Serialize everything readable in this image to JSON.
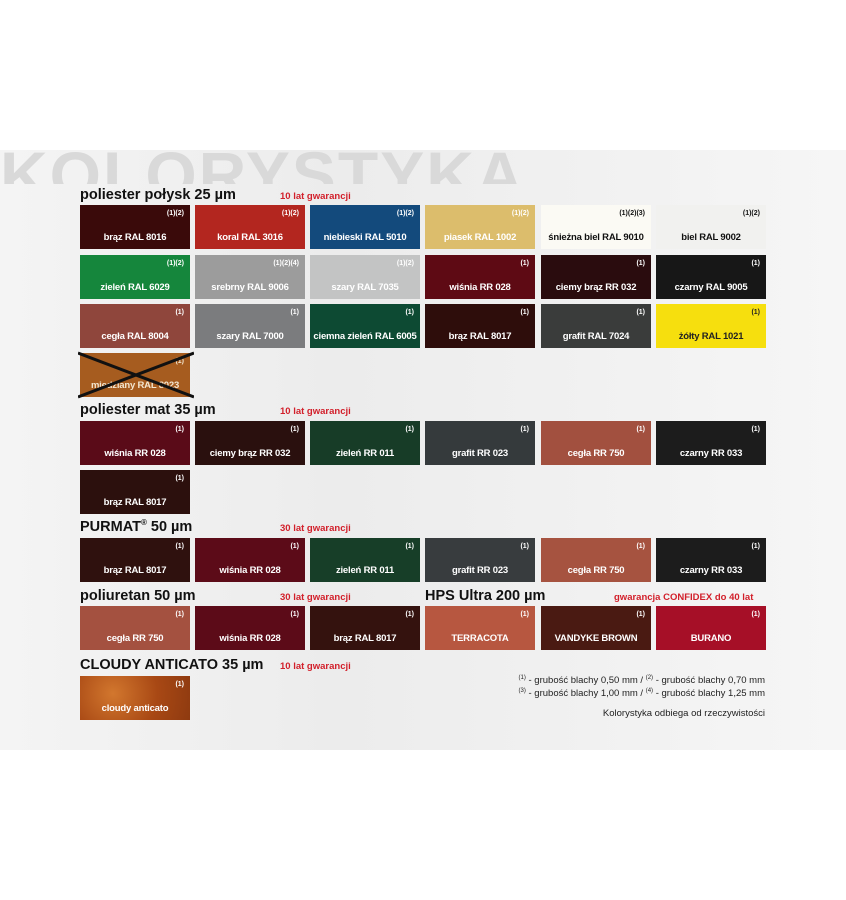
{
  "watermark": "KOLORYSTYKA",
  "sections": [
    {
      "id": "poliester-polysk",
      "title": "poliester połysk 25 µm",
      "warranty": "10 lat gwarancji",
      "swatches": [
        {
          "label": "brąz RAL 8016",
          "note": "(1)(2)",
          "color": "#3a0a0a",
          "text": "#fff"
        },
        {
          "label": "koral RAL 3016",
          "note": "(1)(2)",
          "color": "#b3261f",
          "text": "#fff"
        },
        {
          "label": "niebieski RAL 5010",
          "note": "(1)(2)",
          "color": "#134a7c",
          "text": "#fff"
        },
        {
          "label": "piasek RAL 1002",
          "note": "(1)(2)",
          "color": "#dcbd6c",
          "text": "#fff"
        },
        {
          "label": "śnieżna biel RAL 9010",
          "note": "(1)(2)(3)",
          "color": "#fbfaf4",
          "text": "#111"
        },
        {
          "label": "biel RAL 9002",
          "note": "(1)(2)",
          "color": "#f1f1ef",
          "text": "#111"
        },
        {
          "label": "zieleń RAL 6029",
          "note": "(1)(2)",
          "color": "#15863c",
          "text": "#fff"
        },
        {
          "label": "srebrny RAL 9006",
          "note": "(1)(2)(4)",
          "color": "#9c9c9c",
          "text": "#fff"
        },
        {
          "label": "szary RAL 7035",
          "note": "(1)(2)",
          "color": "#c3c4c4",
          "text": "#fff"
        },
        {
          "label": "wiśnia RR 028",
          "note": "(1)",
          "color": "#5e0a14",
          "text": "#fff"
        },
        {
          "label": "ciemy brąz RR 032",
          "note": "(1)",
          "color": "#2a0c0e",
          "text": "#fff"
        },
        {
          "label": "czarny RAL 9005",
          "note": "(1)",
          "color": "#171717",
          "text": "#fff"
        },
        {
          "label": "cegła RAL 8004",
          "note": "(1)",
          "color": "#8f463c",
          "text": "#fff"
        },
        {
          "label": "szary RAL 7000",
          "note": "(1)",
          "color": "#7b7c7e",
          "text": "#fff"
        },
        {
          "label": "ciemna zieleń RAL 6005",
          "note": "(1)",
          "color": "#0d4a33",
          "text": "#fff"
        },
        {
          "label": "brąz RAL 8017",
          "note": "(1)",
          "color": "#2e0d0b",
          "text": "#fff"
        },
        {
          "label": "grafit RAL 7024",
          "note": "(1)",
          "color": "#3a3c3b",
          "text": "#fff"
        },
        {
          "label": "żółty RAL 1021",
          "note": "(1)",
          "color": "#f6df0e",
          "text": "#222"
        },
        {
          "label": "miedziany RAL 8023",
          "note": "(1)",
          "color": "#a65c1f",
          "text": "#f3e6d0",
          "crossed": true
        }
      ]
    },
    {
      "id": "poliester-mat",
      "title": "poliester mat 35 µm",
      "warranty": "10 lat gwarancji",
      "swatches": [
        {
          "label": "wiśnia RR 028",
          "note": "(1)",
          "color": "#5a0b18",
          "text": "#fff"
        },
        {
          "label": "ciemy brąz RR 032",
          "note": "(1)",
          "color": "#2a100e",
          "text": "#fff"
        },
        {
          "label": "zieleń RR 011",
          "note": "(1)",
          "color": "#173c27",
          "text": "#fff"
        },
        {
          "label": "grafit RR 023",
          "note": "(1)",
          "color": "#353a3c",
          "text": "#fff"
        },
        {
          "label": "cegła RR 750",
          "note": "(1)",
          "color": "#a2503f",
          "text": "#fff"
        },
        {
          "label": "czarny RR 033",
          "note": "(1)",
          "color": "#1c1c1c",
          "text": "#fff"
        },
        {
          "label": "brąz RAL 8017",
          "note": "(1)",
          "color": "#2c100d",
          "text": "#fff"
        }
      ]
    },
    {
      "id": "purmat",
      "title": "PURMAT",
      "title_sup": "®",
      "title_rest": " 50 µm",
      "warranty": "30 lat gwarancji",
      "swatches": [
        {
          "label": "brąz RAL 8017",
          "note": "(1)",
          "color": "#2f110e",
          "text": "#fff"
        },
        {
          "label": "wiśnia RR 028",
          "note": "(1)",
          "color": "#5c0b18",
          "text": "#fff"
        },
        {
          "label": "zieleń RR 011",
          "note": "(1)",
          "color": "#173e28",
          "text": "#fff"
        },
        {
          "label": "grafit RR 023",
          "note": "(1)",
          "color": "#383c3e",
          "text": "#fff"
        },
        {
          "label": "cegła RR 750",
          "note": "(1)",
          "color": "#a65340",
          "text": "#fff"
        },
        {
          "label": "czarny RR 033",
          "note": "(1)",
          "color": "#1c1c1c",
          "text": "#fff"
        }
      ]
    },
    {
      "id": "poliuretan",
      "title": "poliuretan 50 µm",
      "warranty": "30 lat gwarancji",
      "swatches": [
        {
          "label": "cegła RR 750",
          "note": "(1)",
          "color": "#a45140",
          "text": "#fff"
        },
        {
          "label": "wiśnia RR 028",
          "note": "(1)",
          "color": "#5c0b18",
          "text": "#fff"
        },
        {
          "label": "brąz RAL 8017",
          "note": "(1)",
          "color": "#34120e",
          "text": "#fff"
        }
      ]
    },
    {
      "id": "hps-ultra",
      "title": "HPS Ultra 200 µm",
      "warranty": "gwarancja CONFIDEX do 40 lat",
      "swatches": [
        {
          "label": "TERRACOTA",
          "note": "(1)",
          "color": "#b75740",
          "text": "#fff"
        },
        {
          "label": "VANDYKE BROWN",
          "note": "(1)",
          "color": "#4a1a12",
          "text": "#fff"
        },
        {
          "label": "BURANO",
          "note": "(1)",
          "color": "#a60f27",
          "text": "#fff"
        }
      ]
    },
    {
      "id": "cloudy",
      "title": "CLOUDY ANTICATO 35 µm",
      "warranty": "10 lat gwarancji",
      "swatches": [
        {
          "label": "cloudy anticato",
          "note": "(1)",
          "color": "#b4531b",
          "text": "#fff"
        }
      ]
    }
  ],
  "footnotes": {
    "line1": {
      "m1": "(1)",
      "t1": " - grubość blachy 0,50 mm / ",
      "m2": "(2)",
      "t2": " - grubość blachy 0,70 mm"
    },
    "line2": {
      "m1": "(3)",
      "t1": " - grubość blachy 1,00 mm / ",
      "m2": "(4)",
      "t2": " - grubość blachy 1,25 mm"
    },
    "disclaimer": "Kolorystyka odbiega od rzeczywistości"
  }
}
